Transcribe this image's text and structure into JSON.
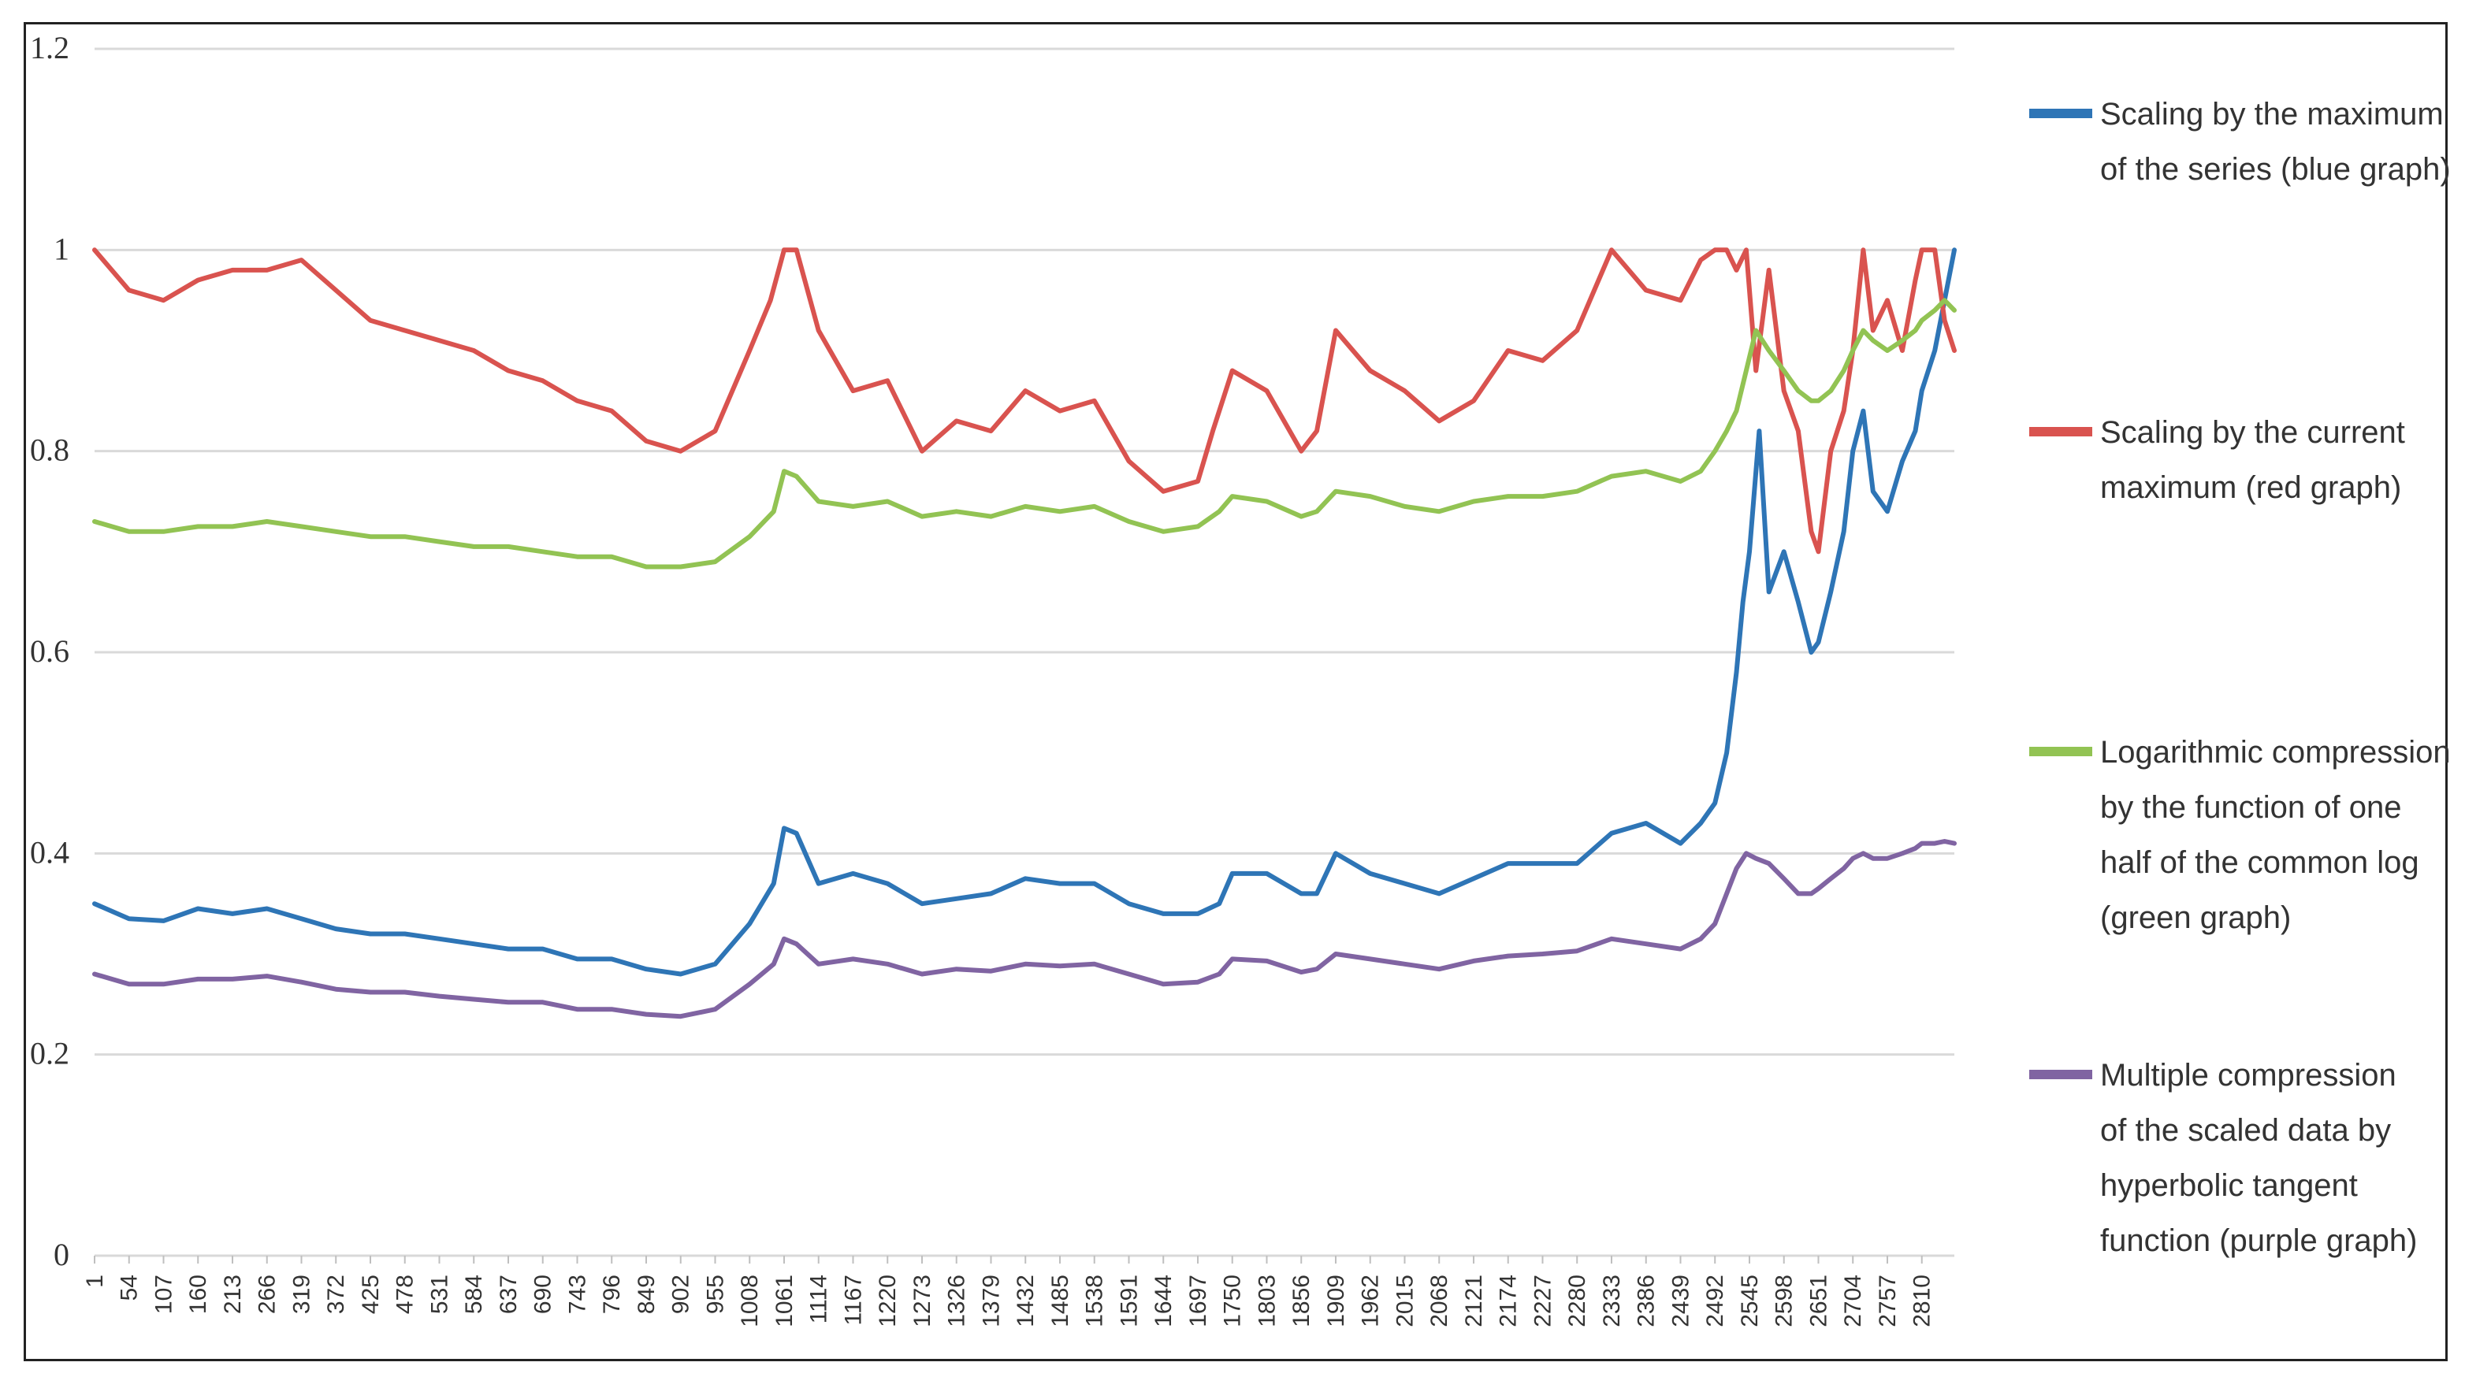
{
  "chart_data": {
    "type": "line",
    "title": "",
    "xlabel": "",
    "ylabel": "",
    "ylim": [
      0,
      1.2
    ],
    "yticks": [
      "0",
      "0.2",
      "0.4",
      "0.6",
      "0.8",
      "1",
      "1.2"
    ],
    "x_tick_labels": [
      "1",
      "54",
      "107",
      "160",
      "213",
      "266",
      "319",
      "372",
      "425",
      "478",
      "531",
      "584",
      "637",
      "690",
      "743",
      "796",
      "849",
      "902",
      "955",
      "1008",
      "1061",
      "1114",
      "1167",
      "1220",
      "1273",
      "1326",
      "1379",
      "1432",
      "1485",
      "1538",
      "1591",
      "1644",
      "1697",
      "1750",
      "1803",
      "1856",
      "1909",
      "1962",
      "2015",
      "2068",
      "2121",
      "2174",
      "2227",
      "2280",
      "2333",
      "2386",
      "2439",
      "2492",
      "2545",
      "2598",
      "2651",
      "2704",
      "2757",
      "2810"
    ],
    "x_range": [
      1,
      2860
    ],
    "grid": true,
    "series": [
      {
        "name": "Scaling by the maximum of the series (blue graph)",
        "legend_lines": [
          "Scaling by the maximum",
          "of the series (blue graph)"
        ],
        "color": "#2e75b6",
        "x": [
          1,
          54,
          107,
          160,
          213,
          266,
          319,
          372,
          425,
          478,
          531,
          584,
          637,
          690,
          743,
          796,
          849,
          902,
          955,
          1008,
          1045,
          1061,
          1080,
          1114,
          1167,
          1220,
          1273,
          1326,
          1379,
          1432,
          1485,
          1538,
          1591,
          1644,
          1697,
          1730,
          1750,
          1803,
          1856,
          1880,
          1909,
          1962,
          2015,
          2068,
          2121,
          2174,
          2227,
          2280,
          2333,
          2386,
          2439,
          2470,
          2492,
          2510,
          2525,
          2535,
          2545,
          2560,
          2575,
          2598,
          2620,
          2640,
          2651,
          2670,
          2690,
          2704,
          2720,
          2735,
          2757,
          2780,
          2800,
          2810,
          2830,
          2845,
          2860
        ],
        "values": [
          0.35,
          0.335,
          0.333,
          0.345,
          0.34,
          0.345,
          0.335,
          0.325,
          0.32,
          0.32,
          0.315,
          0.31,
          0.305,
          0.305,
          0.295,
          0.295,
          0.285,
          0.28,
          0.29,
          0.33,
          0.37,
          0.425,
          0.42,
          0.37,
          0.38,
          0.37,
          0.35,
          0.355,
          0.36,
          0.375,
          0.37,
          0.37,
          0.35,
          0.34,
          0.34,
          0.35,
          0.38,
          0.38,
          0.36,
          0.36,
          0.4,
          0.38,
          0.37,
          0.36,
          0.375,
          0.39,
          0.39,
          0.39,
          0.42,
          0.43,
          0.41,
          0.43,
          0.45,
          0.5,
          0.58,
          0.65,
          0.7,
          0.82,
          0.66,
          0.7,
          0.65,
          0.6,
          0.61,
          0.66,
          0.72,
          0.8,
          0.84,
          0.76,
          0.74,
          0.79,
          0.82,
          0.86,
          0.9,
          0.95,
          1.0
        ]
      },
      {
        "name": "Scaling by the current maximum (red graph)",
        "legend_lines": [
          "Scaling by the current",
          "maximum (red graph)"
        ],
        "color": "#d9534f",
        "x": [
          1,
          54,
          107,
          160,
          213,
          266,
          319,
          372,
          425,
          478,
          531,
          584,
          637,
          690,
          743,
          796,
          849,
          902,
          955,
          1008,
          1040,
          1061,
          1080,
          1114,
          1167,
          1220,
          1273,
          1326,
          1379,
          1432,
          1485,
          1538,
          1591,
          1644,
          1697,
          1720,
          1750,
          1803,
          1856,
          1880,
          1909,
          1962,
          2015,
          2068,
          2121,
          2174,
          2227,
          2280,
          2333,
          2386,
          2439,
          2470,
          2492,
          2510,
          2525,
          2540,
          2555,
          2575,
          2598,
          2620,
          2640,
          2651,
          2670,
          2690,
          2704,
          2720,
          2735,
          2757,
          2780,
          2800,
          2810,
          2830,
          2845,
          2860
        ],
        "values": [
          1.0,
          0.96,
          0.95,
          0.97,
          0.98,
          0.98,
          0.99,
          0.96,
          0.93,
          0.92,
          0.91,
          0.9,
          0.88,
          0.87,
          0.85,
          0.84,
          0.81,
          0.8,
          0.82,
          0.9,
          0.95,
          1.0,
          1.0,
          0.92,
          0.86,
          0.87,
          0.8,
          0.83,
          0.82,
          0.86,
          0.84,
          0.85,
          0.79,
          0.76,
          0.77,
          0.82,
          0.88,
          0.86,
          0.8,
          0.82,
          0.92,
          0.88,
          0.86,
          0.83,
          0.85,
          0.9,
          0.89,
          0.92,
          1.0,
          0.96,
          0.95,
          0.99,
          1.0,
          1.0,
          0.98,
          1.0,
          0.88,
          0.98,
          0.86,
          0.82,
          0.72,
          0.7,
          0.8,
          0.84,
          0.9,
          1.0,
          0.92,
          0.95,
          0.9,
          0.97,
          1.0,
          1.0,
          0.93,
          0.9
        ]
      },
      {
        "name": "Logarithmic compression by the function of one half of the common log (green graph)",
        "legend_lines": [
          "Logarithmic compression",
          "by the function of one",
          "half of the common log",
          "(green graph)"
        ],
        "color": "#92c353",
        "x": [
          1,
          54,
          107,
          160,
          213,
          266,
          319,
          372,
          425,
          478,
          531,
          584,
          637,
          690,
          743,
          796,
          849,
          902,
          955,
          1008,
          1045,
          1061,
          1080,
          1114,
          1167,
          1220,
          1273,
          1326,
          1379,
          1432,
          1485,
          1538,
          1591,
          1644,
          1697,
          1730,
          1750,
          1803,
          1856,
          1880,
          1909,
          1962,
          2015,
          2068,
          2121,
          2174,
          2227,
          2280,
          2333,
          2386,
          2439,
          2470,
          2492,
          2510,
          2525,
          2540,
          2555,
          2575,
          2598,
          2620,
          2640,
          2651,
          2670,
          2690,
          2704,
          2720,
          2735,
          2757,
          2780,
          2800,
          2810,
          2830,
          2845,
          2860
        ],
        "values": [
          0.73,
          0.72,
          0.72,
          0.725,
          0.725,
          0.73,
          0.725,
          0.72,
          0.715,
          0.715,
          0.71,
          0.705,
          0.705,
          0.7,
          0.695,
          0.695,
          0.685,
          0.685,
          0.69,
          0.715,
          0.74,
          0.78,
          0.775,
          0.75,
          0.745,
          0.75,
          0.735,
          0.74,
          0.735,
          0.745,
          0.74,
          0.745,
          0.73,
          0.72,
          0.725,
          0.74,
          0.755,
          0.75,
          0.735,
          0.74,
          0.76,
          0.755,
          0.745,
          0.74,
          0.75,
          0.755,
          0.755,
          0.76,
          0.775,
          0.78,
          0.77,
          0.78,
          0.8,
          0.82,
          0.84,
          0.88,
          0.92,
          0.9,
          0.88,
          0.86,
          0.85,
          0.85,
          0.86,
          0.88,
          0.9,
          0.92,
          0.91,
          0.9,
          0.91,
          0.92,
          0.93,
          0.94,
          0.95,
          0.94
        ]
      },
      {
        "name": "Multiple compression of the scaled data by hyperbolic tangent function (purple graph)",
        "legend_lines": [
          "Multiple compression",
          "of the scaled data by",
          "hyperbolic tangent",
          "function (purple graph)"
        ],
        "color": "#8064a2",
        "x": [
          1,
          54,
          107,
          160,
          213,
          266,
          319,
          372,
          425,
          478,
          531,
          584,
          637,
          690,
          743,
          796,
          849,
          902,
          955,
          1008,
          1045,
          1061,
          1080,
          1114,
          1167,
          1220,
          1273,
          1326,
          1379,
          1432,
          1485,
          1538,
          1591,
          1644,
          1697,
          1730,
          1750,
          1803,
          1856,
          1880,
          1909,
          1962,
          2015,
          2068,
          2121,
          2174,
          2227,
          2280,
          2333,
          2386,
          2439,
          2470,
          2492,
          2510,
          2525,
          2540,
          2555,
          2575,
          2598,
          2620,
          2640,
          2651,
          2670,
          2690,
          2704,
          2720,
          2735,
          2757,
          2780,
          2800,
          2810,
          2830,
          2845,
          2860
        ],
        "values": [
          0.28,
          0.27,
          0.27,
          0.275,
          0.275,
          0.278,
          0.272,
          0.265,
          0.262,
          0.262,
          0.258,
          0.255,
          0.252,
          0.252,
          0.245,
          0.245,
          0.24,
          0.238,
          0.245,
          0.27,
          0.29,
          0.315,
          0.31,
          0.29,
          0.295,
          0.29,
          0.28,
          0.285,
          0.283,
          0.29,
          0.288,
          0.29,
          0.28,
          0.27,
          0.272,
          0.28,
          0.295,
          0.293,
          0.282,
          0.285,
          0.3,
          0.295,
          0.29,
          0.285,
          0.293,
          0.298,
          0.3,
          0.303,
          0.315,
          0.31,
          0.305,
          0.315,
          0.33,
          0.36,
          0.385,
          0.4,
          0.395,
          0.39,
          0.375,
          0.36,
          0.36,
          0.365,
          0.375,
          0.385,
          0.395,
          0.4,
          0.395,
          0.395,
          0.4,
          0.405,
          0.41,
          0.41,
          0.412,
          0.41
        ]
      }
    ]
  }
}
